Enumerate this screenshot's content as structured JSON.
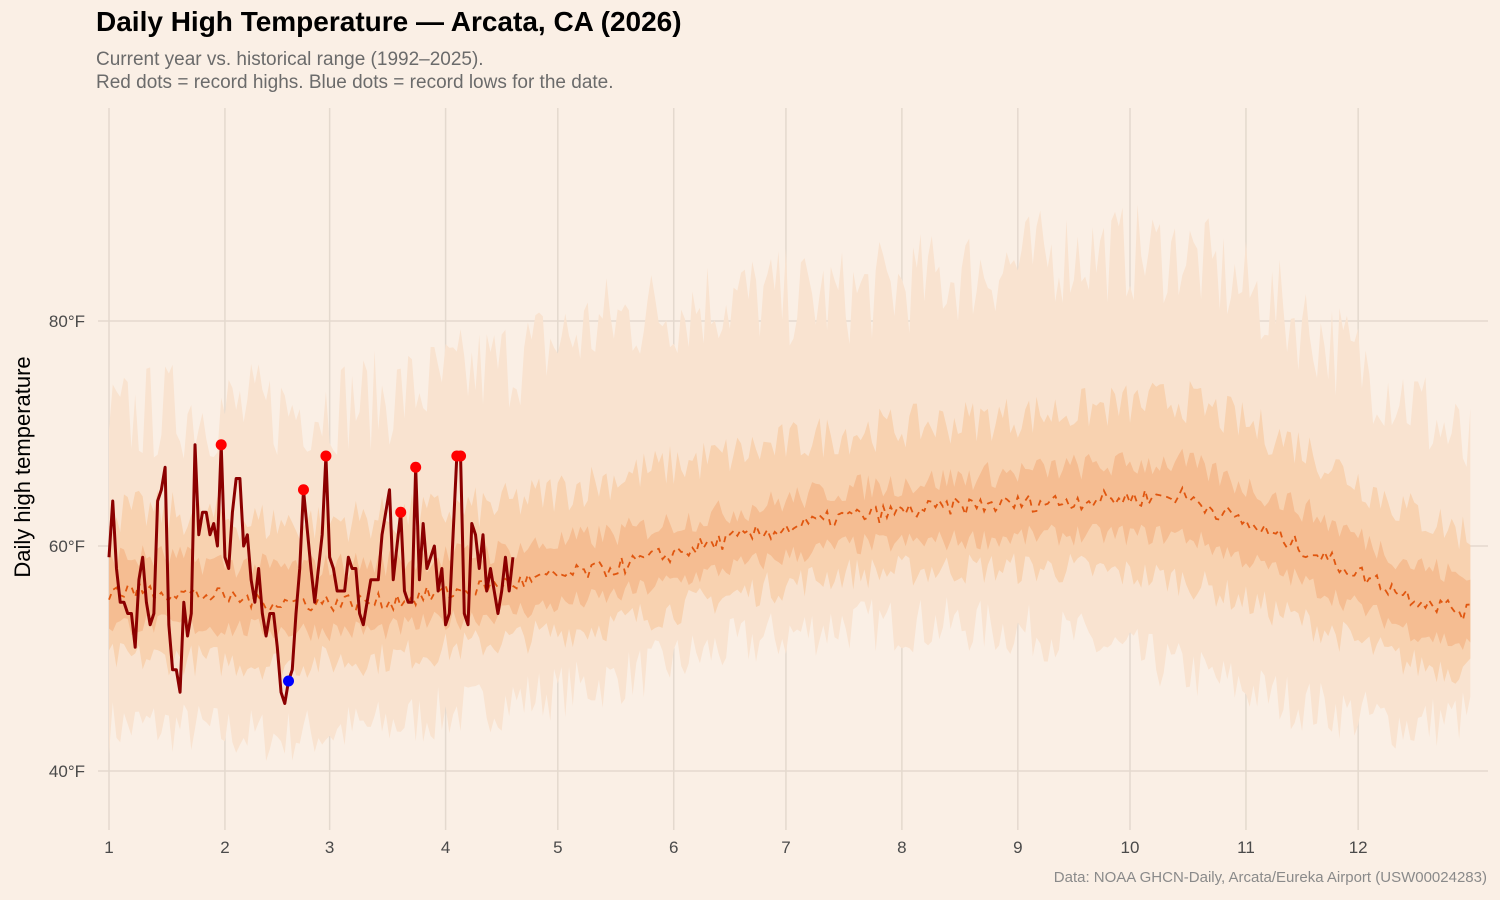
{
  "header": {
    "title": "Daily High Temperature — Arcata, CA (2026)",
    "subtitle_line1": "Current year vs. historical range (1992–2025).",
    "subtitle_line2": "Red dots = record highs. Blue dots = record lows for the date."
  },
  "caption": "Data: NOAA GHCN-Daily, Arcata/Eureka Airport (USW00024283)",
  "chart_data": {
    "type": "line",
    "title": "Daily High Temperature — Arcata, CA (2026)",
    "xlabel": "",
    "ylabel": "Daily high temperature",
    "x_unit": "day of year",
    "x_ticks": [
      {
        "label": "1",
        "day": 1
      },
      {
        "label": "2",
        "day": 32
      },
      {
        "label": "3",
        "day": 60
      },
      {
        "label": "4",
        "day": 91
      },
      {
        "label": "5",
        "day": 121
      },
      {
        "label": "6",
        "day": 152
      },
      {
        "label": "7",
        "day": 182
      },
      {
        "label": "8",
        "day": 213
      },
      {
        "label": "9",
        "day": 244
      },
      {
        "label": "10",
        "day": 274
      },
      {
        "label": "11",
        "day": 305
      },
      {
        "label": "12",
        "day": 335
      }
    ],
    "y_ticks": [
      {
        "label": "40°F",
        "value": 40
      },
      {
        "label": "60°F",
        "value": 60
      },
      {
        "label": "80°F",
        "value": 80
      }
    ],
    "xlim": [
      1,
      365
    ],
    "ylim": [
      37.4,
      98.9
    ],
    "grid": true,
    "historical_bands_monthly": {
      "days": [
        1,
        15,
        46,
        74,
        105,
        135,
        166,
        196,
        227,
        258,
        288,
        319,
        349,
        365
      ],
      "normal": [
        56,
        56,
        55,
        55,
        56.5,
        58,
        60.5,
        62.5,
        63.5,
        64,
        64.5,
        60,
        55.5,
        54
      ],
      "p25": [
        53,
        53,
        52.5,
        52.5,
        54,
        55.5,
        58,
        60,
        60.5,
        61,
        61,
        57,
        52.5,
        51
      ],
      "p75": [
        59,
        59,
        58,
        58.5,
        59.5,
        61,
        63,
        65,
        66,
        67,
        67.5,
        63.5,
        58.5,
        57
      ],
      "p10": [
        50,
        50,
        49.5,
        50,
        51.5,
        53,
        55.5,
        57.5,
        58,
        58,
        57,
        53.5,
        49.5,
        49
      ],
      "p90": [
        63,
        63,
        62,
        62.5,
        63.5,
        66,
        68,
        70,
        71,
        72,
        73,
        69,
        63,
        61
      ],
      "min": [
        44,
        44,
        43,
        44,
        46,
        48,
        51,
        53,
        53,
        52,
        49,
        46,
        44,
        45
      ],
      "max": [
        71,
        72,
        72,
        73,
        76,
        80,
        82,
        82,
        84,
        86,
        86,
        80,
        73,
        68
      ]
    },
    "series": [
      {
        "name": "2026",
        "color": "#8b0000",
        "points": [
          [
            1,
            59
          ],
          [
            2,
            64
          ],
          [
            3,
            58
          ],
          [
            4,
            55
          ],
          [
            5,
            55
          ],
          [
            6,
            54
          ],
          [
            7,
            54
          ],
          [
            8,
            51
          ],
          [
            9,
            57
          ],
          [
            10,
            59
          ],
          [
            11,
            55
          ],
          [
            12,
            53
          ],
          [
            13,
            54
          ],
          [
            14,
            64
          ],
          [
            15,
            65
          ],
          [
            16,
            67
          ],
          [
            17,
            53
          ],
          [
            18,
            49
          ],
          [
            19,
            49
          ],
          [
            20,
            47
          ],
          [
            21,
            55
          ],
          [
            22,
            52
          ],
          [
            23,
            54
          ],
          [
            24,
            69
          ],
          [
            25,
            61
          ],
          [
            26,
            63
          ],
          [
            27,
            63
          ],
          [
            28,
            61
          ],
          [
            29,
            62
          ],
          [
            30,
            60
          ],
          [
            31,
            69
          ],
          [
            32,
            59
          ],
          [
            33,
            58
          ],
          [
            34,
            63
          ],
          [
            35,
            66
          ],
          [
            36,
            66
          ],
          [
            37,
            60
          ],
          [
            38,
            61
          ],
          [
            39,
            57
          ],
          [
            40,
            55
          ],
          [
            41,
            58
          ],
          [
            42,
            54
          ],
          [
            43,
            52
          ],
          [
            44,
            54
          ],
          [
            45,
            54
          ],
          [
            46,
            51
          ],
          [
            47,
            47
          ],
          [
            48,
            46
          ],
          [
            49,
            48
          ],
          [
            50,
            49
          ],
          [
            51,
            54
          ],
          [
            52,
            58
          ],
          [
            53,
            65
          ],
          [
            54,
            61.5
          ],
          [
            55,
            58
          ],
          [
            56,
            55
          ],
          [
            57,
            58
          ],
          [
            58,
            61
          ],
          [
            59,
            68
          ],
          [
            60,
            59
          ],
          [
            61,
            58
          ],
          [
            62,
            56
          ],
          [
            63,
            56
          ],
          [
            64,
            56
          ],
          [
            65,
            59
          ],
          [
            66,
            58
          ],
          [
            67,
            58
          ],
          [
            68,
            54
          ],
          [
            69,
            53
          ],
          [
            70,
            55
          ],
          [
            71,
            57
          ],
          [
            72,
            57
          ],
          [
            73,
            57
          ],
          [
            74,
            61
          ],
          [
            75,
            63
          ],
          [
            76,
            65
          ],
          [
            77,
            57
          ],
          [
            78,
            60
          ],
          [
            79,
            63
          ],
          [
            80,
            56
          ],
          [
            81,
            55
          ],
          [
            82,
            55
          ],
          [
            83,
            67
          ],
          [
            84,
            57
          ],
          [
            85,
            62
          ],
          [
            86,
            58
          ],
          [
            87,
            59
          ],
          [
            88,
            60
          ],
          [
            89,
            56
          ],
          [
            90,
            58
          ],
          [
            91,
            53
          ],
          [
            92,
            54
          ],
          [
            93,
            61
          ],
          [
            94,
            68
          ],
          [
            95,
            68
          ],
          [
            96,
            54
          ],
          [
            97,
            53
          ],
          [
            98,
            62
          ],
          [
            99,
            61
          ],
          [
            100,
            58
          ],
          [
            101,
            61
          ],
          [
            102,
            56
          ],
          [
            103,
            58
          ],
          [
            104,
            56
          ],
          [
            105,
            54
          ],
          [
            106,
            56
          ],
          [
            107,
            59
          ],
          [
            108,
            56
          ],
          [
            109,
            59
          ]
        ]
      }
    ],
    "record_highs": [
      [
        31,
        69
      ],
      [
        53,
        65
      ],
      [
        59,
        68
      ],
      [
        79,
        63
      ],
      [
        83,
        67
      ],
      [
        94,
        68
      ],
      [
        95,
        68
      ]
    ],
    "record_lows": [
      [
        49,
        48
      ]
    ],
    "colors": {
      "background": "#faefe5",
      "band_minmax": "#f9e3d0",
      "band_p10_p90": "#f8d2b0",
      "band_p25_p75": "#f5bd92",
      "normal_line": "#e0560f",
      "current_line": "#8b0000",
      "record_high": "#ff0000",
      "record_low": "#0000ff",
      "grid": "#e4d9ce"
    }
  }
}
